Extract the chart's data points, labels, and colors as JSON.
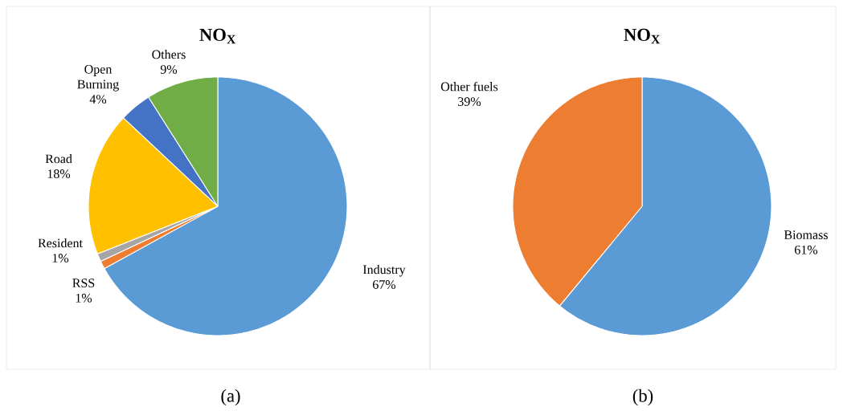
{
  "chart_data": [
    {
      "type": "pie",
      "title": "NO$_{X}$",
      "categories": [
        "Industry",
        "RSS",
        "Resident",
        "Road",
        "Open Burning",
        "Others"
      ],
      "values": [
        67,
        1,
        1,
        18,
        4,
        9
      ],
      "colors": [
        "#5b9bd5",
        "#ed7d31",
        "#a5a5a5",
        "#ffc000",
        "#4472c4",
        "#70ad47"
      ],
      "value_labels": [
        "67%",
        "1%",
        "1%",
        "18%",
        "4%",
        "9%"
      ],
      "annotations": [
        "(a)"
      ]
    },
    {
      "type": "pie",
      "title": "NO$_{X}$",
      "categories": [
        "Biomass",
        "Other fuels"
      ],
      "values": [
        61,
        39
      ],
      "colors": [
        "#5b9bd5",
        "#ed7d31"
      ],
      "value_labels": [
        "61%",
        "39%"
      ],
      "annotations": [
        "(b)"
      ]
    }
  ]
}
